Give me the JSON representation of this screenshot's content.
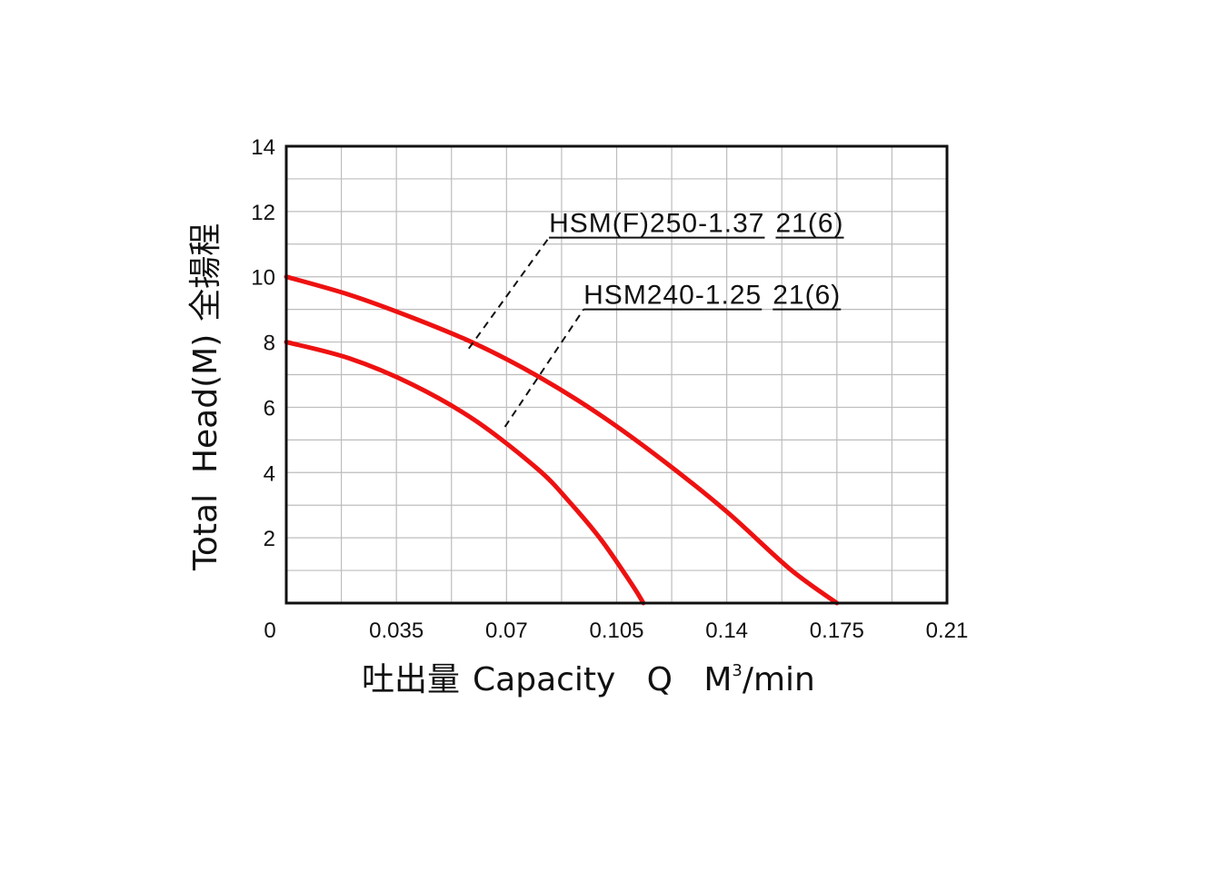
{
  "chart_data": {
    "type": "line",
    "xlabel_prefix": "吐出量",
    "xlabel_main": "Capacity   Q   M",
    "xlabel_sup": "3",
    "xlabel_suffix": "/min",
    "ylabel_cjk": "全揚程",
    "ylabel_main": "Total  Head(M)",
    "x_ticks": [
      "0",
      "0.035",
      "0.07",
      "0.105",
      "0.14",
      "0.175",
      "0.21"
    ],
    "y_ticks": [
      "2",
      "4",
      "6",
      "8",
      "10",
      "12",
      "14"
    ],
    "xlim": [
      0,
      0.21
    ],
    "ylim": [
      0,
      14
    ],
    "grid": true,
    "line_color": "#ee1111",
    "series": [
      {
        "name": "HSM(F)250-1.37",
        "spec": "21(6)",
        "x": [
          0,
          0.02,
          0.04,
          0.06,
          0.08,
          0.1,
          0.12,
          0.14,
          0.16,
          0.175
        ],
        "y": [
          10.0,
          9.45,
          8.75,
          7.95,
          6.95,
          5.75,
          4.35,
          2.8,
          1.05,
          0
        ]
      },
      {
        "name": "HSM240-1.25",
        "spec": "21(6)",
        "x": [
          0,
          0.02,
          0.04,
          0.06,
          0.08,
          0.09,
          0.1,
          0.11,
          0.1135
        ],
        "y": [
          8.0,
          7.5,
          6.7,
          5.6,
          4.1,
          3.1,
          1.95,
          0.55,
          0
        ]
      }
    ]
  }
}
